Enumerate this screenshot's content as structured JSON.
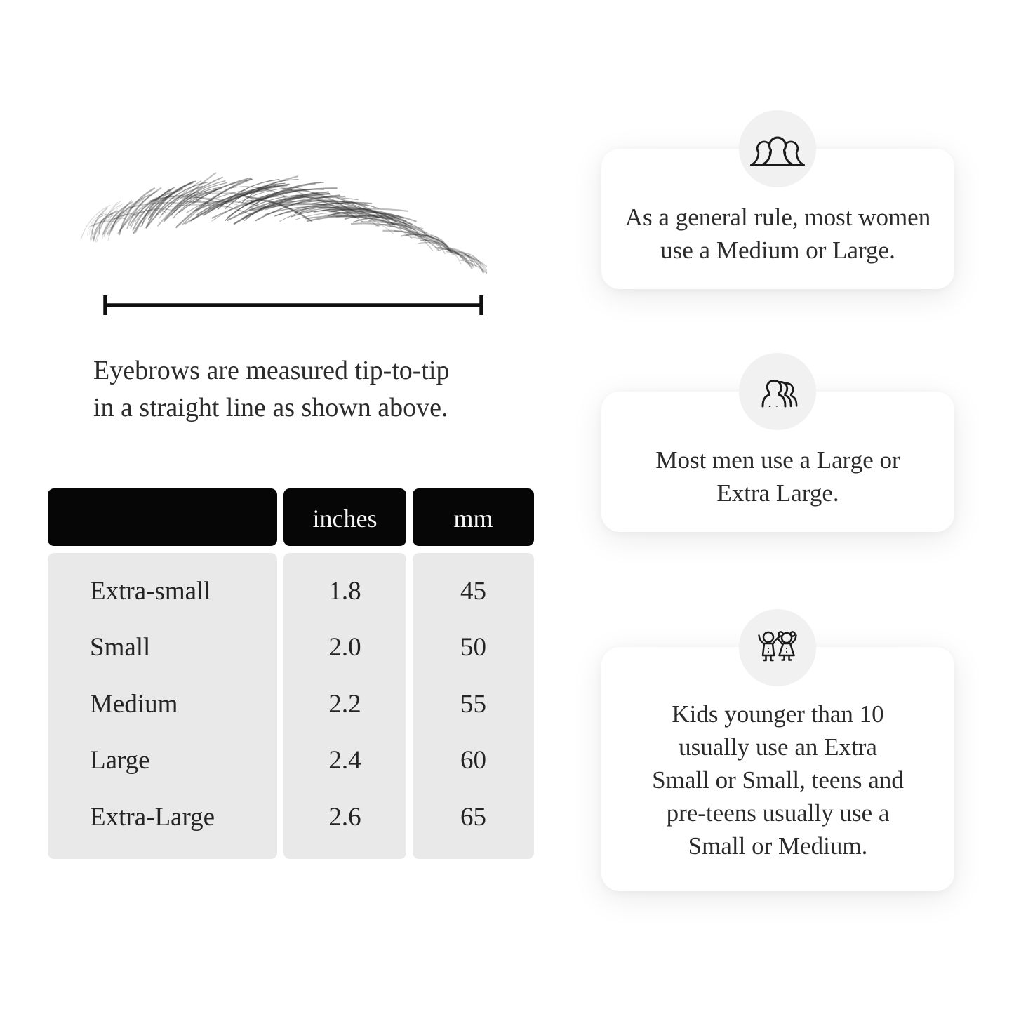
{
  "measurement": {
    "illustration": "eyebrow-illustration",
    "line_icon": "tip-to-tip-measurement-line",
    "caption_lines": [
      "Eyebrows are measured tip-to-tip",
      "in a straight line as shown above."
    ]
  },
  "size_table": {
    "header": {
      "size_label": "",
      "inches_label": "inches",
      "mm_label": "mm"
    },
    "rows": [
      {
        "label": "Extra-small",
        "inches": "1.8",
        "mm": "45"
      },
      {
        "label": "Small",
        "inches": "2.0",
        "mm": "50"
      },
      {
        "label": "Medium",
        "inches": "2.2",
        "mm": "55"
      },
      {
        "label": "Large",
        "inches": "2.4",
        "mm": "60"
      },
      {
        "label": "Extra-Large",
        "inches": "2.6",
        "mm": "65"
      }
    ]
  },
  "cards": [
    {
      "icon": "women-group-icon",
      "lines": [
        "As a general rule, most women",
        "use a Medium or Large."
      ]
    },
    {
      "icon": "men-group-icon",
      "lines": [
        "Most men use a Large or",
        "Extra Large."
      ]
    },
    {
      "icon": "children-icon",
      "lines": [
        "Kids younger than 10",
        "usually use an Extra",
        "Small or Small, teens and",
        "pre-teens usually use a",
        "Small or Medium."
      ]
    }
  ],
  "colors": {
    "page_bg": "#ffffff",
    "table_header_bg": "#060606",
    "table_header_text": "#f7f7f7",
    "table_body_bg": "#e9e9e9",
    "card_bg": "#ffffff",
    "icon_circle_bg": "#f1f1f1",
    "text": "#2b2b2b",
    "line_art": "#1a1a1a"
  }
}
